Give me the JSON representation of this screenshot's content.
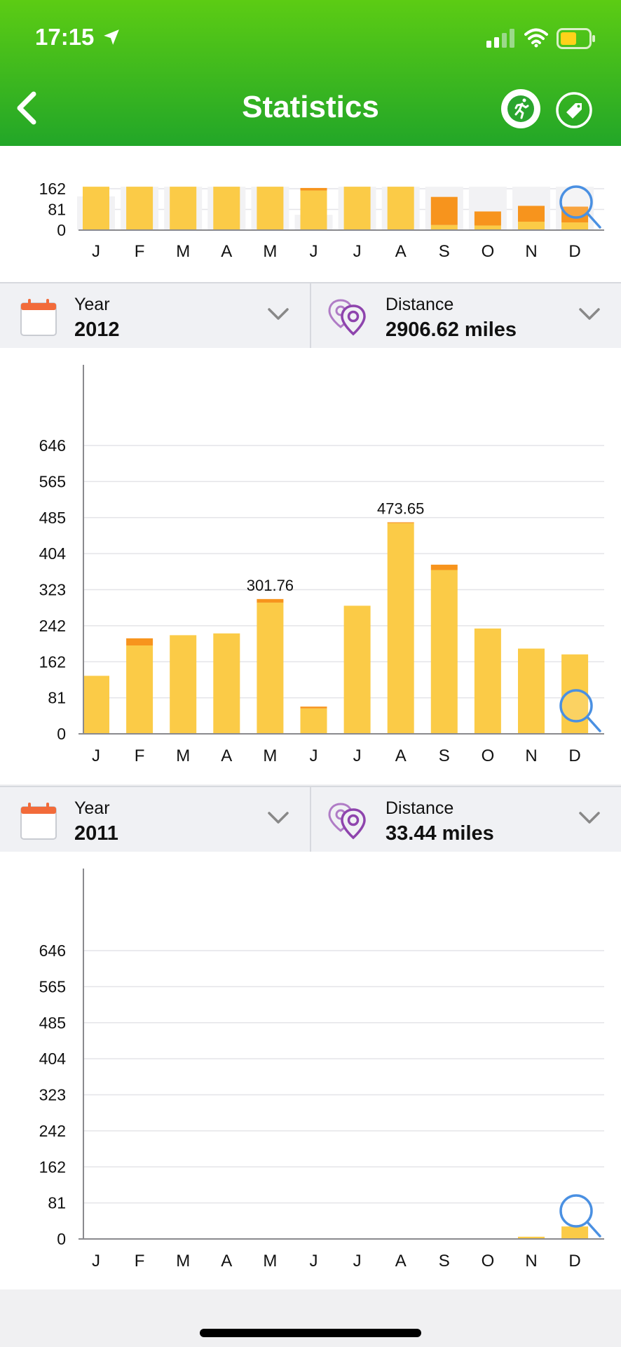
{
  "status_bar": {
    "time": "17:15"
  },
  "header": {
    "title": "Statistics"
  },
  "icons": {
    "back": "chevron-left-icon",
    "run": "runner-icon",
    "tag": "tag-icon",
    "zoom": "magnifier-icon",
    "calendar": "calendar-icon",
    "pins": "location-pins-icon",
    "dropdown": "chevron-down-icon"
  },
  "colors": {
    "header_top": "#5ccc14",
    "header_bottom": "#22a628",
    "bar_main": "#fbcb47",
    "bar_cap": "#f7941d",
    "zoom": "#4a90e2"
  },
  "selectors": [
    {
      "period_label": "Year",
      "period_value": "2012",
      "metric_label": "Distance",
      "metric_value": "2906.62 miles"
    },
    {
      "period_label": "Year",
      "period_value": "2011",
      "metric_label": "Distance",
      "metric_value": "33.44 miles"
    }
  ],
  "chart_data": [
    {
      "type": "bar",
      "note": "previous year (partially scrolled off top)",
      "categories": [
        "J",
        "F",
        "M",
        "A",
        "M",
        "J",
        "J",
        "A",
        "S",
        "O",
        "N",
        "D"
      ],
      "y_ticks": [
        "0",
        "81",
        "162"
      ],
      "ylim": [
        0,
        162
      ],
      "series": [
        {
          "values": [
            170,
            170,
            170,
            170,
            170,
            155,
            170,
            170,
            20,
            18,
            33,
            30
          ]
        },
        {
          "values": [
            0,
            0,
            0,
            0,
            0,
            10,
            0,
            0,
            110,
            55,
            62,
            62
          ]
        }
      ],
      "background_values": [
        132,
        170,
        170,
        170,
        170,
        60,
        170,
        170,
        170,
        170,
        170,
        170
      ]
    },
    {
      "type": "bar",
      "categories": [
        "J",
        "F",
        "M",
        "A",
        "M",
        "J",
        "J",
        "A",
        "S",
        "O",
        "N",
        "D"
      ],
      "y_ticks": [
        "0",
        "81",
        "162",
        "242",
        "323",
        "404",
        "485",
        "565",
        "646"
      ],
      "ylim": [
        0,
        646
      ],
      "series": [
        {
          "values": [
            130,
            198,
            221,
            225,
            294,
            57,
            287,
            472,
            367,
            236,
            191,
            178
          ]
        },
        {
          "values": [
            0,
            16,
            0,
            0,
            8,
            4,
            0,
            2,
            12,
            0,
            0,
            0
          ]
        }
      ],
      "data_labels": [
        {
          "index": 4,
          "text": "301.76"
        },
        {
          "index": 7,
          "text": "473.65"
        }
      ]
    },
    {
      "type": "bar",
      "categories": [
        "J",
        "F",
        "M",
        "A",
        "M",
        "J",
        "J",
        "A",
        "S",
        "O",
        "N",
        "D"
      ],
      "y_ticks": [
        "0",
        "81",
        "162",
        "242",
        "323",
        "404",
        "485",
        "565",
        "646"
      ],
      "ylim": [
        0,
        646
      ],
      "series": [
        {
          "values": [
            0,
            0,
            0,
            0,
            0,
            0,
            0,
            0,
            0,
            0,
            5,
            28
          ]
        },
        {
          "values": [
            0,
            0,
            0,
            0,
            0,
            0,
            0,
            0,
            0,
            0,
            0,
            0
          ]
        }
      ]
    }
  ]
}
